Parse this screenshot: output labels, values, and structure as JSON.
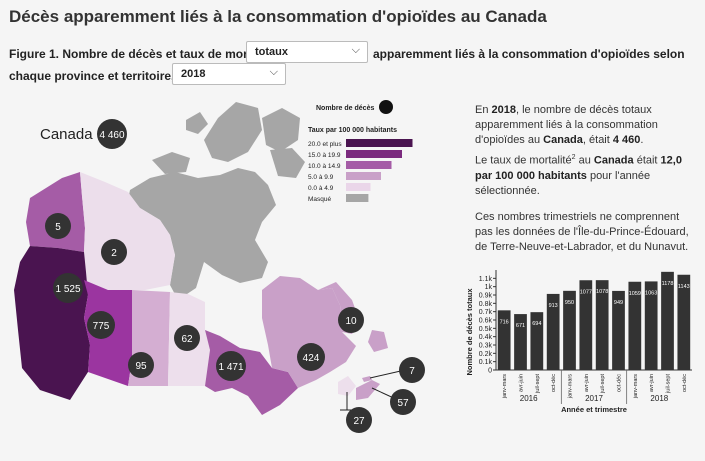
{
  "title": "Décès apparemment liés à la consommation d'opioïdes au Canada",
  "figure": {
    "line1_prefix": "Figure 1. Nombre de décès et taux de mortalité",
    "line1_suffix": "apparemment liés à la consommation d'opioïdes selon",
    "line2_prefix": "chaque province et territoire, en",
    "measure_select": "totaux",
    "year_select": "2018"
  },
  "map": {
    "national_label": "Canada",
    "national_value": "4 460",
    "colors": {
      "c1": "#4a1450",
      "c2": "#9b35a0",
      "c3": "#c47ac2",
      "c4": "#dcb6d9",
      "c5": "#f0e3ef",
      "masked": "#a6a6a6"
    },
    "regions": [
      {
        "name": "Yukon",
        "value": "5"
      },
      {
        "name": "Territoires du Nord-Ouest",
        "value": "2"
      },
      {
        "name": "Colombie-Britannique",
        "value": "1 525"
      },
      {
        "name": "Alberta",
        "value": "775"
      },
      {
        "name": "Saskatchewan",
        "value": "95"
      },
      {
        "name": "Manitoba",
        "value": "62"
      },
      {
        "name": "Ontario",
        "value": "1 471"
      },
      {
        "name": "Québec",
        "value": "424"
      },
      {
        "name": "Terre-Neuve-et-Labrador",
        "value": "10"
      },
      {
        "name": "Nouveau-Brunswick",
        "value": "27"
      },
      {
        "name": "Nouvelle-Écosse",
        "value": "57"
      },
      {
        "name": "Île-du-Prince-Édouard",
        "value": "7"
      }
    ]
  },
  "legend": {
    "count_label": "Nombre de décès",
    "rate_title": "Taux par 100 000 habitants",
    "items": [
      {
        "label": "20.0 et plus",
        "color": "#4a1450",
        "level": 5
      },
      {
        "label": "15.0 à 19.9",
        "color": "#7b2a7e",
        "level": 4
      },
      {
        "label": "10.0 à 14.9",
        "color": "#a55ca6",
        "level": 3
      },
      {
        "label": "5.0 à 9.9",
        "color": "#c9a0c8",
        "level": 2
      },
      {
        "label": "0.0 à 4.9",
        "color": "#ead6e9",
        "level": 1
      },
      {
        "label": "Masqué",
        "color": "#a6a6a6",
        "level": 0.8
      }
    ]
  },
  "description": {
    "p1_pre": "En ",
    "p1_year": "2018",
    "p1_mid": ", le nombre de décès totaux apparemment liés à la consommation d'opioïdes au ",
    "p1_place": "Canada",
    "p1_mid2": ", était ",
    "p1_value": "4 460",
    "p1_end": ".",
    "p2_pre": "Le taux de mortalité",
    "p2_sup": "2",
    "p2_mid": " au ",
    "p2_place": "Canada",
    "p2_mid2": " était ",
    "p2_value": "12,0 par 100 000 habitants",
    "p2_end": " pour l'année sélectionnée.",
    "p3": "Ces nombres trimestriels ne comprennent pas les données de l'Île-du-Prince-Édouard, de Terre-Neuve-et-Labrador, et du Nunavut."
  },
  "chart_data": {
    "type": "bar",
    "ylabel": "Nombre de décès totaux",
    "xlabel": "Année et trimestre",
    "ylim": [
      0,
      1200
    ],
    "yticks": [
      "0",
      "0.1k",
      "0.2k",
      "0.3k",
      "0.4k",
      "0.5k",
      "0.6k",
      "0.7k",
      "0.8k",
      "0.9k",
      "1k",
      "1.1k"
    ],
    "categories": [
      "janv-mars",
      "avr-juin",
      "juil-sept",
      "oct-déc",
      "janv-mars",
      "avr-juin",
      "juil-sept",
      "oct-déc",
      "janv-mars",
      "avr-juin",
      "juil-sept",
      "oct-déc"
    ],
    "years": [
      "2016",
      "2017",
      "2018"
    ],
    "values": [
      716,
      671,
      694,
      913,
      950,
      1077,
      1078,
      949,
      1059,
      1063,
      1178,
      1143
    ],
    "bar_color": "#333333"
  }
}
